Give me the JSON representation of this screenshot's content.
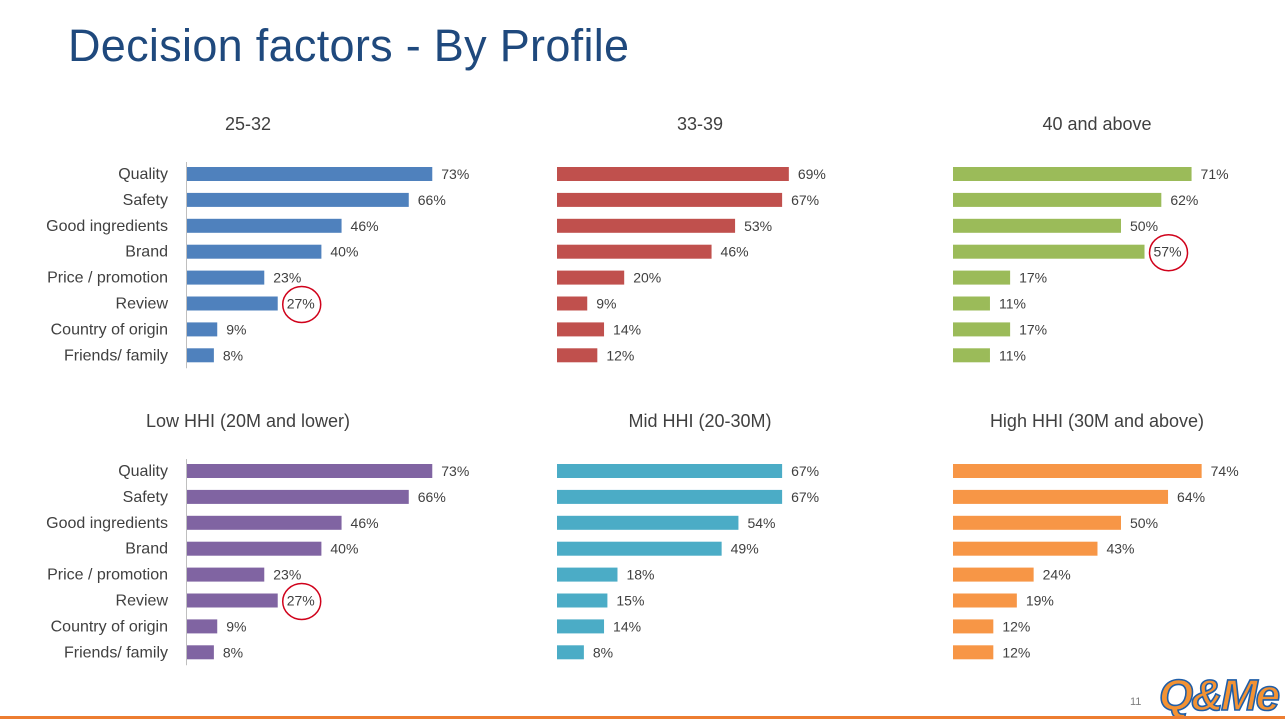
{
  "title": "Decision factors - By Profile",
  "page_number": "11",
  "logo_text": "Q&Me",
  "colors": {
    "title": "#1f497d",
    "footer_line": "#ed7d31",
    "highlight_circle": "#d0021b",
    "logo_orange": "#f39233",
    "logo_blue": "#1f5ea8"
  },
  "chart_data": [
    {
      "type": "bar",
      "orientation": "horizontal",
      "title": "25-32",
      "color": "#4f81bd",
      "categories": [
        "Quality",
        "Safety",
        "Good ingredients",
        "Brand",
        "Price / promotion",
        "Review",
        "Country of origin",
        "Friends/ family"
      ],
      "values": [
        73,
        66,
        46,
        40,
        23,
        27,
        9,
        8
      ],
      "labels": [
        "73%",
        "66%",
        "46%",
        "40%",
        "23%",
        "27%",
        "9%",
        "8%"
      ],
      "xlim": [
        0,
        100
      ],
      "show_axis_line": true,
      "highlight": [
        5
      ]
    },
    {
      "type": "bar",
      "orientation": "horizontal",
      "title": "33-39",
      "color": "#c0504d",
      "categories": [
        "Quality",
        "Safety",
        "Good ingredients",
        "Brand",
        "Price / promotion",
        "Review",
        "Country of origin",
        "Friends/ family"
      ],
      "values": [
        69,
        67,
        53,
        46,
        20,
        9,
        14,
        12
      ],
      "labels": [
        "69%",
        "67%",
        "53%",
        "46%",
        "20%",
        "9%",
        "14%",
        "12%"
      ],
      "xlim": [
        0,
        100
      ],
      "show_axis_line": false,
      "highlight": []
    },
    {
      "type": "bar",
      "orientation": "horizontal",
      "title": "40 and above",
      "color": "#9bbb59",
      "categories": [
        "Quality",
        "Safety",
        "Good ingredients",
        "Brand",
        "Price / promotion",
        "Review",
        "Country of origin",
        "Friends/ family"
      ],
      "values": [
        71,
        62,
        50,
        57,
        17,
        11,
        17,
        11
      ],
      "labels": [
        "71%",
        "62%",
        "50%",
        "57%",
        "17%",
        "11%",
        "17%",
        "11%"
      ],
      "xlim": [
        0,
        100
      ],
      "show_axis_line": false,
      "highlight": [
        3
      ]
    },
    {
      "type": "bar",
      "orientation": "horizontal",
      "title": "Low HHI (20M and lower)",
      "color": "#8064a2",
      "categories": [
        "Quality",
        "Safety",
        "Good ingredients",
        "Brand",
        "Price / promotion",
        "Review",
        "Country of origin",
        "Friends/ family"
      ],
      "values": [
        73,
        66,
        46,
        40,
        23,
        27,
        9,
        8
      ],
      "labels": [
        "73%",
        "66%",
        "46%",
        "40%",
        "23%",
        "27%",
        "9%",
        "8%"
      ],
      "xlim": [
        0,
        100
      ],
      "show_axis_line": true,
      "highlight": [
        5
      ]
    },
    {
      "type": "bar",
      "orientation": "horizontal",
      "title": "Mid HHI (20-30M)",
      "color": "#4bacc6",
      "categories": [
        "Quality",
        "Safety",
        "Good ingredients",
        "Brand",
        "Price / promotion",
        "Review",
        "Country of origin",
        "Friends/ family"
      ],
      "values": [
        67,
        67,
        54,
        49,
        18,
        15,
        14,
        8
      ],
      "labels": [
        "67%",
        "67%",
        "54%",
        "49%",
        "18%",
        "15%",
        "14%",
        "8%"
      ],
      "xlim": [
        0,
        100
      ],
      "show_axis_line": false,
      "highlight": []
    },
    {
      "type": "bar",
      "orientation": "horizontal",
      "title": "High HHI (30M and above)",
      "color": "#f79646",
      "categories": [
        "Quality",
        "Safety",
        "Good ingredients",
        "Brand",
        "Price / promotion",
        "Review",
        "Country of origin",
        "Friends/ family"
      ],
      "values": [
        74,
        64,
        50,
        43,
        24,
        19,
        12,
        12
      ],
      "labels": [
        "74%",
        "64%",
        "50%",
        "43%",
        "24%",
        "19%",
        "12%",
        "12%"
      ],
      "xlim": [
        0,
        100
      ],
      "show_axis_line": false,
      "highlight": []
    }
  ]
}
